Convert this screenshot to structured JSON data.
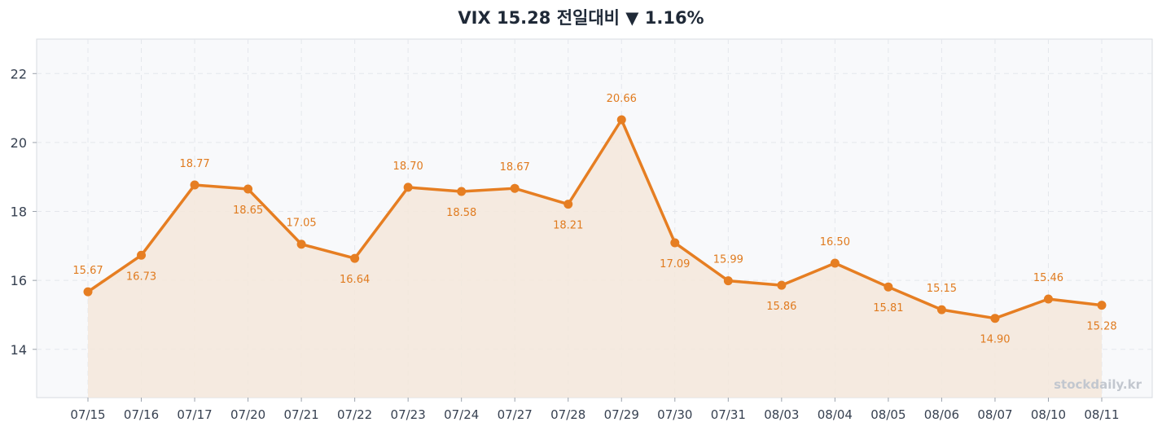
{
  "chart_data": {
    "type": "line",
    "title": "VIX 15.28 전일대비 ▼ 1.16%",
    "xlabel": "",
    "ylabel": "",
    "categories": [
      "07/15",
      "07/16",
      "07/17",
      "07/20",
      "07/21",
      "07/22",
      "07/23",
      "07/24",
      "07/27",
      "07/28",
      "07/29",
      "07/30",
      "07/31",
      "08/03",
      "08/04",
      "08/05",
      "08/06",
      "08/07",
      "08/10",
      "08/11"
    ],
    "series": [
      {
        "values": [
          15.67,
          16.73,
          18.77,
          18.65,
          17.05,
          16.64,
          18.7,
          18.58,
          18.67,
          18.21,
          20.66,
          17.09,
          15.99,
          15.86,
          16.5,
          15.81,
          15.15,
          14.9,
          15.46,
          15.28
        ],
        "labels": [
          "15.67",
          "16.73",
          "18.77",
          "18.65",
          "17.05",
          "16.64",
          "18.70",
          "18.58",
          "18.67",
          "18.21",
          "20.66",
          "17.09",
          "15.99",
          "15.86",
          "16.50",
          "15.81",
          "15.15",
          "14.90",
          "15.46",
          "15.28"
        ],
        "label_side": [
          "above",
          "below",
          "above",
          "below",
          "above",
          "below",
          "above",
          "below",
          "above",
          "below",
          "above",
          "below",
          "above",
          "below",
          "above",
          "below",
          "above",
          "below",
          "above",
          "below"
        ],
        "color": "#e67e22"
      }
    ],
    "ylim": [
      12.6,
      23.0
    ],
    "yticks": [
      14,
      16,
      18,
      20,
      22
    ],
    "grid": true,
    "area_fill": true,
    "watermark": "stockdaily.kr"
  },
  "colors": {
    "line": "#e67e22",
    "fill": "#f5e7da",
    "plot_bg": "#f8f9fb",
    "grid": "#e4e7ec",
    "label": "#e07b1f"
  }
}
